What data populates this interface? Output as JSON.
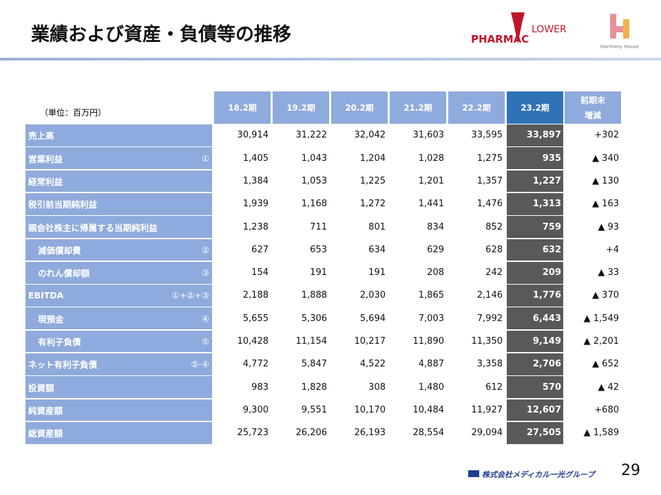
{
  "header": {
    "title": "業績および資産・負債等の推移",
    "logo_left_1": "PHARMAC",
    "logo_left_2": "LOWER",
    "logo_right": "Harmony House"
  },
  "table": {
    "unit": "（単位：百万円）",
    "columns": [
      "18.2期",
      "19.2期",
      "20.2期",
      "21.2期",
      "22.2期",
      "23.2期"
    ],
    "change_header": [
      "前期末",
      "増減"
    ],
    "rows": [
      {
        "label": "売上高",
        "values": [
          "30,914",
          "31,222",
          "32,042",
          "31,603",
          "33,595",
          "33,897"
        ],
        "change": "+302"
      },
      {
        "label": "営業利益",
        "note": "①",
        "values": [
          "1,405",
          "1,043",
          "1,204",
          "1,028",
          "1,275",
          "935"
        ],
        "change": "▲ 340"
      },
      {
        "label": "経常利益",
        "values": [
          "1,384",
          "1,053",
          "1,225",
          "1,201",
          "1,357",
          "1,227"
        ],
        "change": "▲ 130"
      },
      {
        "label": "税引前当期純利益",
        "values": [
          "1,939",
          "1,168",
          "1,272",
          "1,441",
          "1,476",
          "1,313"
        ],
        "change": "▲ 163"
      },
      {
        "label": "親会社株主に帰属する当期純利益",
        "values": [
          "1,238",
          "711",
          "801",
          "834",
          "852",
          "759"
        ],
        "change": "▲ 93"
      },
      {
        "label": "減価償却費",
        "note": "②",
        "values": [
          "627",
          "653",
          "634",
          "629",
          "628",
          "632"
        ],
        "change": "+4"
      },
      {
        "label": "のれん償却額",
        "note": "③",
        "values": [
          "154",
          "191",
          "191",
          "208",
          "242",
          "209"
        ],
        "change": "▲ 33"
      },
      {
        "label": "EBITDA",
        "note": "①+②+③",
        "values": [
          "2,188",
          "1,888",
          "2,030",
          "1,865",
          "2,146",
          "1,776"
        ],
        "change": "▲ 370"
      },
      {
        "label": "現預金",
        "note": "④",
        "values": [
          "5,655",
          "5,306",
          "5,694",
          "7,003",
          "7,992",
          "6,443"
        ],
        "change": "▲ 1,549"
      },
      {
        "label": "有利子負債",
        "note": "⑤",
        "values": [
          "10,428",
          "11,154",
          "10,217",
          "11,890",
          "11,350",
          "9,149"
        ],
        "change": "▲ 2,201"
      },
      {
        "label": "ネット有利子負債",
        "note": "⑤-④",
        "values": [
          "4,772",
          "5,847",
          "4,522",
          "4,887",
          "3,358",
          "2,706"
        ],
        "change": "▲ 652"
      },
      {
        "label": "投資額",
        "values": [
          "983",
          "1,828",
          "308",
          "1,480",
          "612",
          "570"
        ],
        "change": "▲ 42"
      },
      {
        "label": "純資産額",
        "values": [
          "9,300",
          "9,551",
          "10,170",
          "10,484",
          "11,927",
          "12,607"
        ],
        "change": "+680"
      },
      {
        "label": "総資産額",
        "values": [
          "25,723",
          "26,206",
          "26,193",
          "28,554",
          "29,094",
          "27,505"
        ],
        "change": "▲ 1,589"
      }
    ]
  },
  "footer": {
    "company": "株式会社メディカル一光グループ",
    "page": "29"
  }
}
